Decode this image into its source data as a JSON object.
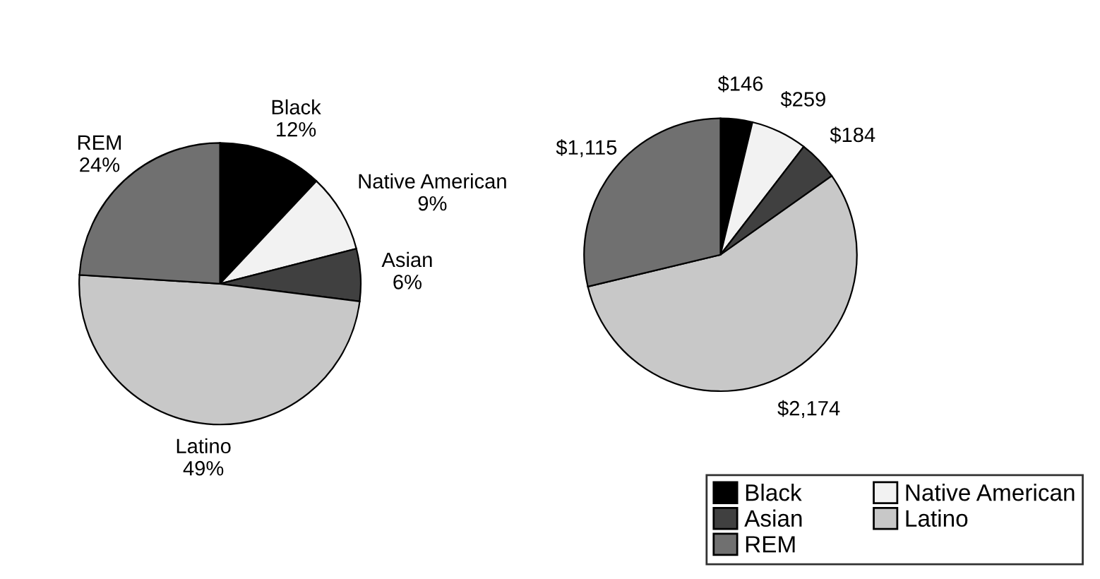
{
  "chart_data": [
    {
      "type": "pie",
      "categories": [
        "Black",
        "Native American",
        "Asian",
        "Latino",
        "REM"
      ],
      "values": [
        12,
        9,
        6,
        49,
        24
      ],
      "value_labels": [
        "12%",
        "9%",
        "6%",
        "49%",
        "24%"
      ],
      "colors": [
        "#000000",
        "#f2f2f2",
        "#404040",
        "#c8c8c8",
        "#707070"
      ],
      "legend": false
    },
    {
      "type": "pie",
      "categories": [
        "Black",
        "Native American",
        "Asian",
        "Latino",
        "REM"
      ],
      "values": [
        146,
        259,
        184,
        2174,
        1115
      ],
      "value_labels": [
        "$146",
        "$259",
        "$184",
        "$2,174",
        "$1,115"
      ],
      "colors": [
        "#000000",
        "#f2f2f2",
        "#404040",
        "#c8c8c8",
        "#707070"
      ],
      "legend": "bottom right"
    }
  ]
}
